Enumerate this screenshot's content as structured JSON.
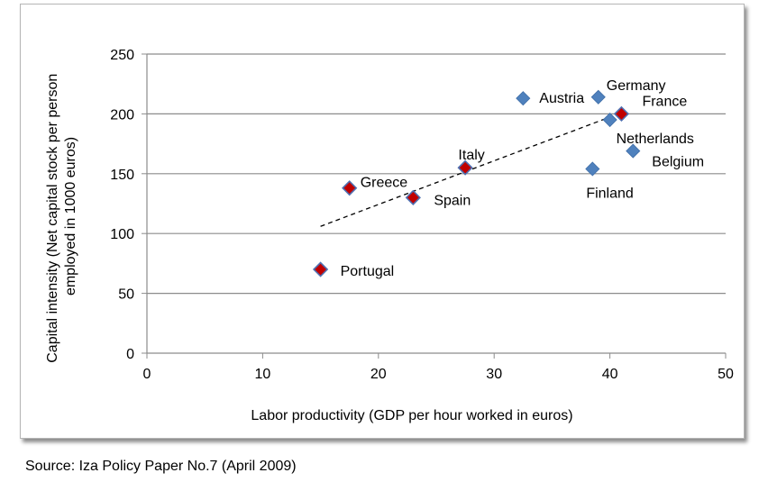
{
  "chart_data": {
    "type": "scatter",
    "xlabel": "Labor productivity (GDP per hour worked in euros)",
    "ylabel": [
      "Capital intensity (Net capital stock per person",
      "employed in 1000 euros)"
    ],
    "xlim": [
      0,
      50
    ],
    "ylim": [
      0,
      250
    ],
    "x_ticks": [
      0,
      10,
      20,
      30,
      40,
      50
    ],
    "y_ticks": [
      0,
      50,
      100,
      150,
      200,
      250
    ],
    "grid": "horizontal",
    "points": [
      {
        "label": "Portugal",
        "x": 15,
        "y": 70,
        "group": "highlighted"
      },
      {
        "label": "Greece",
        "x": 17.5,
        "y": 138,
        "group": "highlighted"
      },
      {
        "label": "Spain",
        "x": 23,
        "y": 130,
        "group": "highlighted"
      },
      {
        "label": "Italy",
        "x": 27.5,
        "y": 155,
        "group": "highlighted"
      },
      {
        "label": "France",
        "x": 41,
        "y": 200,
        "group": "highlighted"
      },
      {
        "label": "Austria",
        "x": 32.5,
        "y": 213,
        "group": "other"
      },
      {
        "label": "Germany",
        "x": 39,
        "y": 214,
        "group": "other"
      },
      {
        "label": "Netherlands",
        "x": 40,
        "y": 195,
        "group": "other"
      },
      {
        "label": "Belgium",
        "x": 42,
        "y": 169,
        "group": "other"
      },
      {
        "label": "Finland",
        "x": 38.5,
        "y": 154,
        "group": "other"
      }
    ],
    "trendline": {
      "style": "dashed",
      "x": [
        15,
        41
      ],
      "y": [
        106,
        201
      ]
    },
    "colors": {
      "highlighted_fill": "#c00000",
      "highlighted_border": "#4f6fb0",
      "other_fill": "#4f81bd",
      "grid": "#8c8c8c",
      "trendline": "#000000"
    }
  },
  "source": "Source: Iza Policy Paper No.7 (April 2009)"
}
